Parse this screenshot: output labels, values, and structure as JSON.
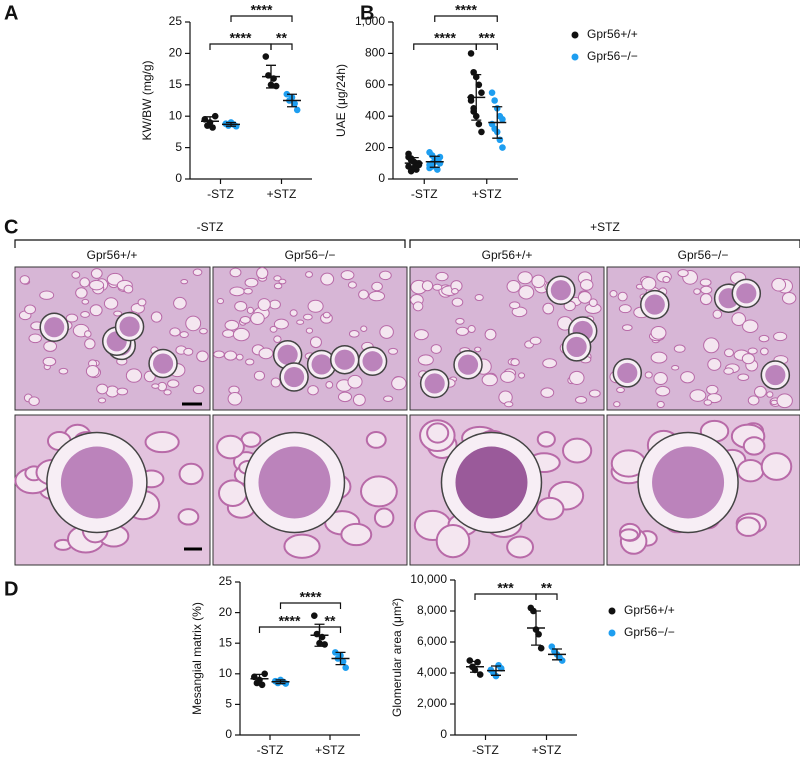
{
  "chart_data": [
    {
      "type": "dotplot",
      "panel": "A",
      "ylabel": "KW/BW (mg/g)",
      "categories": [
        "-STZ",
        "+STZ"
      ],
      "ylim": [
        0,
        25
      ],
      "yticks": [
        0,
        5,
        10,
        15,
        20,
        25
      ],
      "annotations": [
        "****",
        "**",
        "****"
      ],
      "series": [
        {
          "color": "#111111",
          "values": [
            [
              9.5,
              8.5,
              9.0,
              8.2,
              10.0
            ],
            [
              19.5,
              16.5,
              15.0,
              16.0,
              14.8
            ]
          ],
          "means": [
            9.2,
            16.3
          ],
          "sds": [
            0.7,
            1.8
          ]
        },
        {
          "color": "#1e9ef0",
          "values": [
            [
              8.8,
              8.5,
              9.0,
              8.7,
              8.4
            ],
            [
              13.5,
              12.5,
              13.0,
              12.0,
              11.0
            ]
          ],
          "means": [
            8.7,
            12.5
          ],
          "sds": [
            0.3,
            1.0
          ]
        }
      ]
    },
    {
      "type": "dotplot",
      "panel": "B",
      "ylabel": "UAE (μg/24h)",
      "categories": [
        "-STZ",
        "+STZ"
      ],
      "ylim": [
        0,
        1000
      ],
      "yticks": [
        0,
        200,
        400,
        600,
        800,
        {
          "value": 1000,
          "label": "1,000"
        }
      ],
      "annotations": [
        "****",
        "***",
        "****"
      ],
      "legend": "right",
      "series": [
        {
          "name": "Gpr56+/+",
          "color": "#111111",
          "values": [
            [
              160,
              130,
              110,
              100,
              90,
              80,
              120,
              70,
              60,
              100,
              140,
              50
            ],
            [
              800,
              680,
              650,
              600,
              550,
              500,
              450,
              400,
              350,
              300,
              520,
              430
            ]
          ],
          "means": [
            101,
            520
          ],
          "sds": [
            35,
            145
          ]
        },
        {
          "name": "Gpr56−/−",
          "color": "#1e9ef0",
          "values": [
            [
              170,
              150,
              130,
              120,
              100,
              90,
              80,
              110,
              60,
              140,
              70,
              100
            ],
            [
              550,
              500,
              450,
              400,
              380,
              350,
              320,
              300,
              250,
              200
            ]
          ],
          "means": [
            110,
            360
          ],
          "sds": [
            35,
            100
          ]
        }
      ]
    },
    {
      "type": "dotplot",
      "panel": "D",
      "ylabel": "Mesangial matrix (%)",
      "categories": [
        "-STZ",
        "+STZ"
      ],
      "ylim": [
        0,
        25
      ],
      "yticks": [
        0,
        5,
        10,
        15,
        20,
        25
      ],
      "annotations": [
        "****",
        "**",
        "****"
      ],
      "series": [
        {
          "color": "#111111",
          "values": [
            [
              9.5,
              8.5,
              9.0,
              8.2,
              10.0
            ],
            [
              19.5,
              16.5,
              15.0,
              16.0,
              14.8
            ]
          ],
          "means": [
            9.2,
            16.3
          ],
          "sds": [
            0.7,
            1.8
          ]
        },
        {
          "color": "#1e9ef0",
          "values": [
            [
              8.8,
              8.5,
              9.0,
              8.7,
              8.4
            ],
            [
              13.5,
              12.5,
              13.0,
              12.0,
              11.0
            ]
          ],
          "means": [
            8.7,
            12.5
          ],
          "sds": [
            0.3,
            1.0
          ]
        }
      ]
    },
    {
      "type": "dotplot",
      "ylabel": "Glomerular area (μm²)",
      "categories": [
        "-STZ",
        "+STZ"
      ],
      "ylim": [
        0,
        10000
      ],
      "yticks": [
        0,
        {
          "value": 2000,
          "label": "2,000"
        },
        {
          "value": 4000,
          "label": "4,000"
        },
        {
          "value": 6000,
          "label": "6,000"
        },
        {
          "value": 8000,
          "label": "8,000"
        },
        {
          "value": 10000,
          "label": "10,000"
        }
      ],
      "annotations": [
        "***",
        "**"
      ],
      "legend": "right",
      "series": [
        {
          "name": "Gpr56+/+",
          "color": "#111111",
          "values": [
            [
              4800,
              4400,
              4200,
              4700,
              3900
            ],
            [
              8200,
              8000,
              6800,
              6500,
              5600
            ]
          ],
          "means": [
            4400,
            6900
          ],
          "sds": [
            350,
            1100
          ]
        },
        {
          "name": "Gpr56−/−",
          "color": "#1e9ef0",
          "values": [
            [
              4200,
              4000,
              3800,
              4500,
              4300
            ],
            [
              5700,
              5400,
              5200,
              5000,
              4800
            ]
          ],
          "means": [
            4150,
            5200
          ],
          "sds": [
            300,
            350
          ]
        }
      ]
    }
  ],
  "histology": {
    "panel": "C",
    "groups": [
      {
        "label": "-STZ",
        "columns": [
          "Gpr56+/+",
          "Gpr56−/−"
        ]
      },
      {
        "label": "+STZ",
        "columns": [
          "Gpr56+/+",
          "Gpr56−/−"
        ]
      }
    ]
  }
}
